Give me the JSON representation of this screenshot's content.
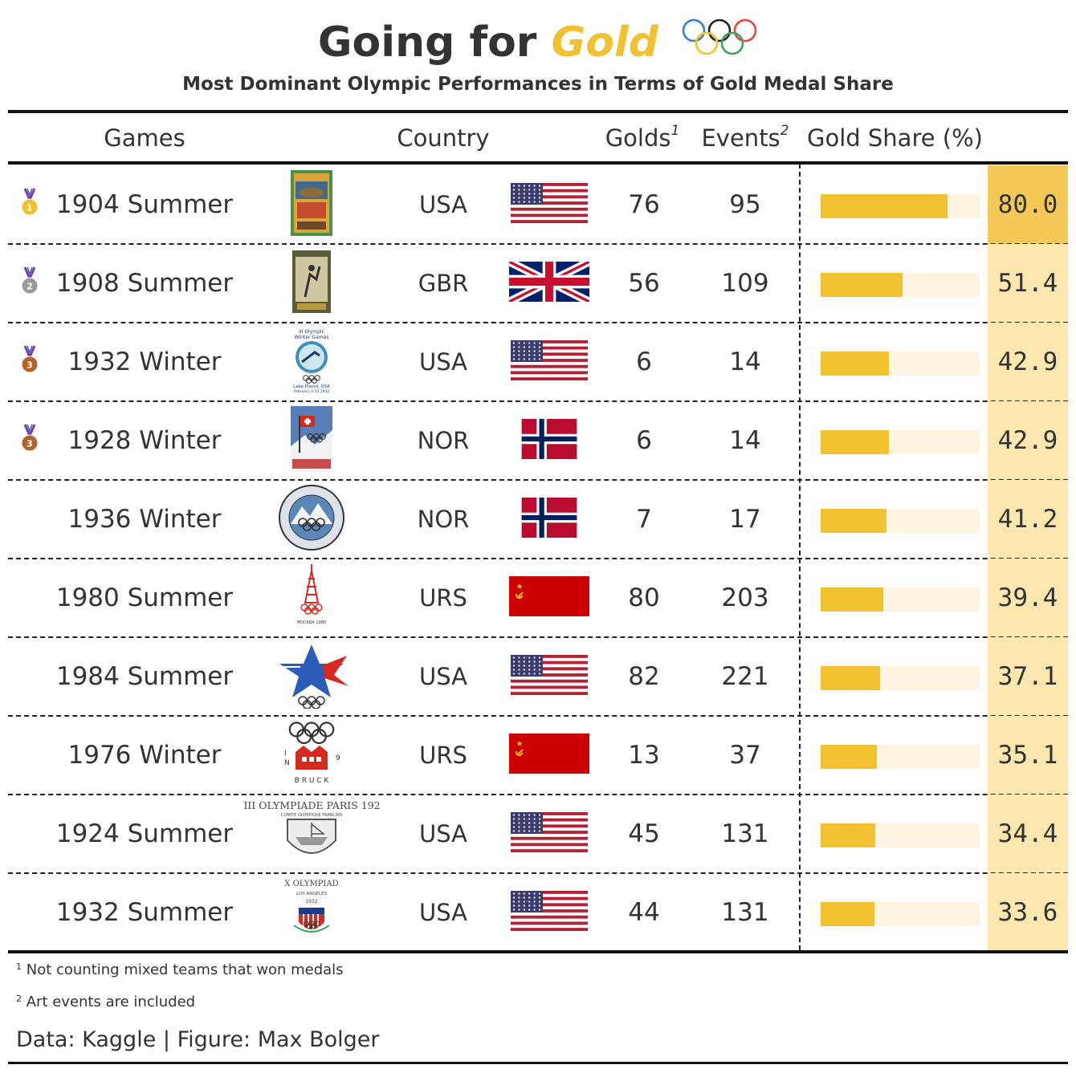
{
  "title": {
    "prefix": "Going for ",
    "highlight": "Gold"
  },
  "subtitle": "Most Dominant Olympic Performances in Terms of Gold Medal Share",
  "columns": {
    "games": "Games",
    "country": "Country",
    "golds": "Golds",
    "golds_note": "1",
    "events": "Events",
    "events_note": "2",
    "share": "Gold Share (%)"
  },
  "colors": {
    "gold": "#F0C232",
    "gold_top": "#F4C957",
    "gold_light": "#FCE7AF",
    "track": "#FDF5E0",
    "silver": "#9A9A9A",
    "bronze": "#B0642A"
  },
  "chart_data": {
    "type": "table",
    "title": "Going for Gold",
    "subtitle": "Most Dominant Olympic Performances in Terms of Gold Medal Share",
    "share_range": [
      0,
      100
    ],
    "rows": [
      {
        "games": "1904 Summer",
        "country": "USA",
        "golds": 76,
        "events": 95,
        "share": "80.0",
        "share_value": 80.0,
        "medal": "gold",
        "medal_rank": "1",
        "logo": "st-louis-1904-poster",
        "flag": "usa"
      },
      {
        "games": "1908 Summer",
        "country": "GBR",
        "golds": 56,
        "events": 109,
        "share": "51.4",
        "share_value": 51.4,
        "medal": "silver",
        "medal_rank": "2",
        "logo": "london-1908-poster",
        "flag": "gbr"
      },
      {
        "games": "1932 Winter",
        "country": "USA",
        "golds": 6,
        "events": 14,
        "share": "42.9",
        "share_value": 42.9,
        "medal": "bronze",
        "medal_rank": "3",
        "logo": "lake-placid-1932-poster",
        "flag": "usa"
      },
      {
        "games": "1928 Winter",
        "country": "NOR",
        "golds": 6,
        "events": 14,
        "share": "42.9",
        "share_value": 42.9,
        "medal": "bronze",
        "medal_rank": "3",
        "logo": "st-moritz-1928-poster",
        "flag": "nor"
      },
      {
        "games": "1936 Winter",
        "country": "NOR",
        "golds": 7,
        "events": 17,
        "share": "41.2",
        "share_value": 41.2,
        "medal": "",
        "medal_rank": "",
        "logo": "garmisch-1936-emblem",
        "flag": "nor"
      },
      {
        "games": "1980 Summer",
        "country": "URS",
        "golds": 80,
        "events": 203,
        "share": "39.4",
        "share_value": 39.4,
        "medal": "",
        "medal_rank": "",
        "logo": "moscow-1980-emblem",
        "flag": "urs"
      },
      {
        "games": "1984 Summer",
        "country": "USA",
        "golds": 82,
        "events": 221,
        "share": "37.1",
        "share_value": 37.1,
        "medal": "",
        "medal_rank": "",
        "logo": "los-angeles-1984-emblem",
        "flag": "usa"
      },
      {
        "games": "1976 Winter",
        "country": "URS",
        "golds": 13,
        "events": 37,
        "share": "35.1",
        "share_value": 35.1,
        "medal": "",
        "medal_rank": "",
        "logo": "innsbruck-1976-emblem",
        "flag": "urs"
      },
      {
        "games": "1924 Summer",
        "country": "USA",
        "golds": 45,
        "events": 131,
        "share": "34.4",
        "share_value": 34.4,
        "medal": "",
        "medal_rank": "",
        "logo": "paris-1924-emblem",
        "flag": "usa"
      },
      {
        "games": "1932 Summer",
        "country": "USA",
        "golds": 44,
        "events": 131,
        "share": "33.6",
        "share_value": 33.6,
        "medal": "",
        "medal_rank": "",
        "logo": "los-angeles-1932-emblem",
        "flag": "usa"
      }
    ]
  },
  "footnotes": [
    {
      "mark": "1",
      "text": "Not counting mixed teams that won medals"
    },
    {
      "mark": "2",
      "text": "Art events are included"
    }
  ],
  "credit": "Data: Kaggle | Figure: Max Bolger"
}
